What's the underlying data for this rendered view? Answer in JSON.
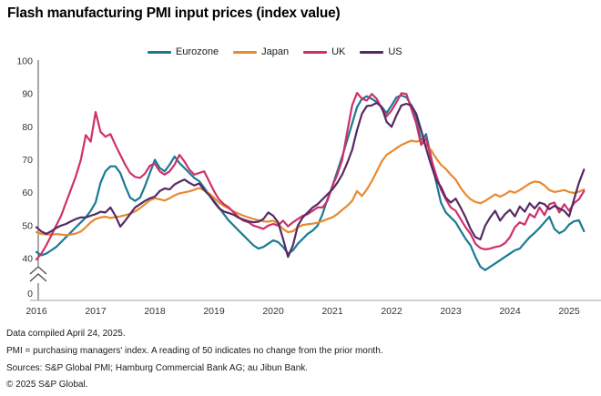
{
  "title": "Flash manufacturing PMI input prices (index value)",
  "footnotes": {
    "line1": "Data compiled April 24, 2025.",
    "line2": "PMI = purchasing managers' index. A reading of 50 indicates no change from the prior month.",
    "line3": "Sources: S&P Global PMI; Hamburg Commercial Bank AG; au Jibun Bank.",
    "line4": "© 2025 S&P Global."
  },
  "colors": {
    "eurozone": "#1a7a94",
    "japan": "#e88a2d",
    "uk": "#cf3069",
    "us": "#542a64",
    "y_axis": "#4d4d4d",
    "x_axis": "#b3b3b3",
    "tick_text": "#333333"
  },
  "chart_data": {
    "type": "line",
    "title": "Flash manufacturing PMI input prices (index value)",
    "x_unit": "month",
    "x_start": "2016-01",
    "x_end": "2025-04",
    "x_tick_labels": [
      "2016",
      "2017",
      "2018",
      "2019",
      "2020",
      "2021",
      "2022",
      "2023",
      "2024",
      "2025"
    ],
    "y_ticks": [
      100,
      90,
      80,
      70,
      60,
      50,
      40
    ],
    "y_break_label": "0",
    "ylim": [
      40,
      100
    ],
    "grid": false,
    "legend_position": "top",
    "series": [
      {
        "name": "Eurozone",
        "color": "#1a7a94",
        "values": [
          42,
          41,
          41.5,
          42.5,
          43.5,
          45,
          46.5,
          48,
          49.5,
          51,
          52.5,
          54.5,
          57,
          63,
          66.5,
          68,
          68,
          66,
          62,
          58.5,
          57.5,
          58.5,
          62,
          66,
          70,
          67.5,
          66.5,
          68.5,
          71,
          69,
          67.5,
          66,
          64.5,
          63.5,
          61.5,
          59.5,
          57.5,
          55.5,
          53.5,
          51.5,
          50,
          48.5,
          47,
          45.5,
          44,
          43,
          43.5,
          44.5,
          45.5,
          45,
          43.5,
          41.5,
          42.5,
          44.5,
          46,
          47.5,
          48.5,
          50,
          53.5,
          58,
          62,
          66.5,
          71,
          76,
          81,
          86,
          88.5,
          89.3,
          88.5,
          87.5,
          86,
          84.2,
          86.5,
          89,
          89.5,
          89,
          86.5,
          83,
          75.5,
          77.8,
          71,
          63.5,
          57,
          54,
          52.5,
          51,
          48.5,
          46,
          44,
          40.5,
          37.5,
          36.5,
          37.5,
          38.5,
          39.5,
          40.5,
          41.5,
          42.5,
          43,
          44.8,
          46.5,
          47.8,
          49.3,
          51,
          52.7,
          49,
          47.7,
          48.5,
          50.3,
          51.3,
          51.6,
          48.3
        ]
      },
      {
        "name": "Japan",
        "color": "#e88a2d",
        "values": [
          48,
          47.5,
          47.3,
          47.3,
          47.4,
          47.3,
          47.1,
          47.3,
          47.6,
          48.2,
          49.5,
          51,
          52,
          52.5,
          52.7,
          52.3,
          52.6,
          52.8,
          53.2,
          53.6,
          54.3,
          55.3,
          56.5,
          57.7,
          58.3,
          58,
          57.6,
          58.3,
          59.2,
          59.8,
          60.1,
          60.4,
          60.9,
          61.4,
          60.8,
          59.8,
          58.5,
          57,
          56,
          55.2,
          54.3,
          53.6,
          53,
          52.5,
          52,
          51.6,
          51.3,
          51.2,
          51.5,
          50.5,
          49,
          48,
          48.3,
          49.5,
          50.2,
          50.4,
          50.6,
          50.9,
          51.4,
          52,
          52.5,
          53.5,
          54.8,
          56,
          57.5,
          60.5,
          59,
          61,
          63.5,
          66.5,
          69.5,
          71.5,
          72.5,
          73.5,
          74.5,
          75.2,
          75.8,
          75.5,
          75.8,
          74.5,
          73,
          70.5,
          68.5,
          67.2,
          65.5,
          64,
          61.5,
          59.5,
          58,
          57.2,
          56.8,
          57.5,
          58.5,
          59.5,
          58.8,
          59.5,
          60.5,
          60,
          60.8,
          61.8,
          62.8,
          63.4,
          63.2,
          62.2,
          60.8,
          60.2,
          60.5,
          60.8,
          60.2,
          59.9,
          60.3,
          61
        ]
      },
      {
        "name": "UK",
        "color": "#cf3069",
        "values": [
          39.7,
          41.5,
          44,
          47,
          50,
          53,
          57,
          61,
          65,
          70,
          77.5,
          75.5,
          84.5,
          78.5,
          77,
          77.8,
          74.5,
          71.5,
          68.5,
          66,
          64.8,
          64.5,
          65.8,
          68.2,
          68.8,
          66.5,
          65.5,
          66.5,
          68.5,
          71.5,
          69.5,
          67,
          65.5,
          66,
          66.5,
          63.5,
          60.5,
          58,
          56.5,
          55.5,
          54,
          52.5,
          51.5,
          51,
          50,
          49.5,
          49,
          50,
          50.5,
          50,
          51.5,
          49.8,
          51,
          52,
          53,
          53.5,
          54.5,
          55.5,
          55.5,
          57.5,
          62,
          65.5,
          70,
          78.5,
          86.5,
          90.3,
          88.5,
          88,
          90,
          88.5,
          85.5,
          83.2,
          85,
          87.5,
          90.2,
          90,
          85.5,
          81,
          74.5,
          76.5,
          70.5,
          65.5,
          61,
          58,
          55.5,
          54.5,
          52,
          49.5,
          47.5,
          44.5,
          43.2,
          42.8,
          43,
          43.5,
          43.8,
          44.7,
          46.5,
          49.5,
          51,
          50.3,
          53.5,
          52.5,
          55.5,
          53.2,
          56.5,
          57,
          54,
          56.5,
          54.5,
          56.8,
          58,
          60.5
        ]
      },
      {
        "name": "US",
        "color": "#542a64",
        "values": [
          49.5,
          48.2,
          47.5,
          48.3,
          49.3,
          50,
          50.5,
          51.3,
          52,
          52.5,
          52.5,
          53,
          53.5,
          54.2,
          54,
          55.5,
          53,
          49.7,
          51.5,
          53.5,
          55.5,
          56.5,
          57.5,
          58.3,
          58.8,
          60.5,
          61.3,
          61,
          62.5,
          63.3,
          64,
          63,
          62.2,
          62.8,
          60.8,
          59.3,
          57.2,
          55.3,
          54.3,
          53.8,
          53.3,
          52.4,
          51.8,
          51.3,
          51,
          51.2,
          52,
          54,
          53,
          51,
          46,
          40.5,
          44,
          50,
          52.5,
          54,
          55.5,
          56.5,
          58,
          59.5,
          61,
          63,
          65.5,
          69,
          73,
          79,
          84,
          86.3,
          86.5,
          87.3,
          86,
          81.5,
          80,
          83.5,
          86.5,
          87,
          86.5,
          84,
          79,
          73.5,
          68.5,
          64,
          61.8,
          58.5,
          57,
          58.2,
          55.5,
          52.5,
          49,
          46.5,
          45.8,
          50,
          52.5,
          54.5,
          51.5,
          53.5,
          54.8,
          52.8,
          55.8,
          54.2,
          56.8,
          55.2,
          57,
          56.5,
          55,
          56,
          55.2,
          54.5,
          52.8,
          58,
          63,
          67
        ]
      }
    ]
  }
}
